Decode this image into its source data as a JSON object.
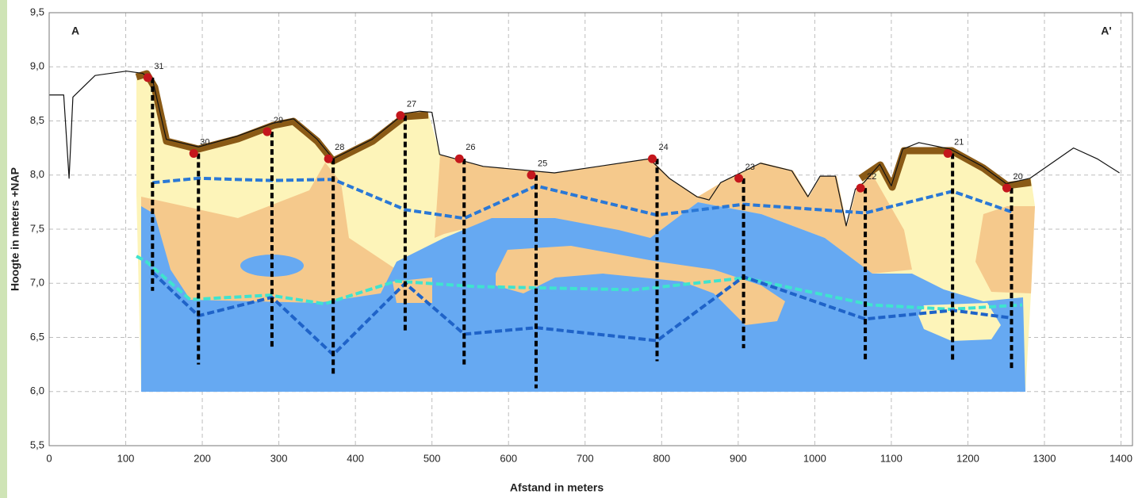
{
  "chart_data": {
    "type": "line",
    "xlabel": "Afstand in meters",
    "ylabel": "Hoogte in meters +NAP",
    "annotations": [
      "A",
      "A'"
    ],
    "xlim": [
      0,
      1415
    ],
    "ylim": [
      5.5,
      9.5
    ],
    "xticks": [
      0,
      100,
      200,
      300,
      400,
      500,
      600,
      700,
      800,
      900,
      1000,
      1100,
      1200,
      1300,
      1400
    ],
    "yticks": [
      {
        "value": 5.5,
        "label": "5,5"
      },
      {
        "value": 6.0,
        "label": "6,0"
      },
      {
        "value": 6.5,
        "label": "6,5"
      },
      {
        "value": 7.0,
        "label": "7,0"
      },
      {
        "value": 7.5,
        "label": "7,5"
      },
      {
        "value": 8.0,
        "label": "8,0"
      },
      {
        "value": 8.5,
        "label": "8,5"
      },
      {
        "value": 9.0,
        "label": "9,0"
      },
      {
        "value": 9.5,
        "label": "9,5"
      }
    ],
    "grid": true,
    "series": [
      {
        "color": "#111111",
        "dashed": false,
        "width": 1.2,
        "x": [
          0,
          19,
          26,
          31,
          60,
          101,
          122,
          135,
          153,
          195,
          246,
          293,
          319,
          350,
          371,
          422,
          464,
          484,
          500,
          510,
          567,
          660,
          784,
          810,
          846,
          862,
          877,
          929,
          970,
          991,
          1007,
          1027,
          1041,
          1053,
          1064,
          1085,
          1100,
          1115,
          1136,
          1177,
          1219,
          1250,
          1281,
          1338,
          1369,
          1398
        ],
        "values": [
          8.74,
          8.74,
          7.97,
          8.72,
          8.92,
          8.96,
          8.94,
          8.88,
          8.33,
          8.26,
          8.36,
          8.48,
          8.52,
          8.33,
          8.15,
          8.33,
          8.57,
          8.59,
          8.58,
          8.19,
          8.08,
          8.02,
          8.15,
          7.97,
          7.8,
          7.77,
          7.93,
          8.11,
          8.04,
          7.8,
          7.99,
          7.99,
          7.53,
          7.87,
          7.93,
          8.1,
          7.9,
          8.24,
          8.3,
          8.24,
          8.08,
          7.92,
          7.97,
          8.25,
          8.15,
          8.02
        ]
      },
      {
        "color": "#2a78d6",
        "dashed": true,
        "width": 4,
        "x": [
          135,
          195,
          291,
          371,
          465,
          542,
          636,
          794,
          907,
          1066,
          1180,
          1257
        ],
        "values": [
          7.93,
          7.97,
          7.95,
          7.96,
          7.68,
          7.6,
          7.9,
          7.63,
          7.73,
          7.65,
          7.85,
          7.66
        ]
      },
      {
        "color": "#3fe3cf",
        "dashed": true,
        "width": 4,
        "x": [
          114,
          127,
          184,
          288,
          360,
          453,
          557,
          764,
          908,
          1074,
          1177,
          1271
        ],
        "values": [
          7.25,
          7.2,
          6.85,
          6.89,
          6.81,
          7.02,
          6.97,
          6.94,
          7.05,
          6.8,
          6.76,
          6.8
        ]
      },
      {
        "color": "#1f63c8",
        "dashed": true,
        "width": 4,
        "x": [
          135,
          195,
          291,
          371,
          465,
          542,
          636,
          794,
          907,
          1066,
          1180,
          1257
        ],
        "values": [
          7.1,
          6.7,
          6.87,
          6.34,
          7.0,
          6.53,
          6.59,
          6.47,
          7.06,
          6.67,
          6.75,
          6.68
        ]
      }
    ],
    "boreholes": [
      {
        "label": "31",
        "x": 135,
        "top": 8.9,
        "bottom": 6.93
      },
      {
        "label": "30",
        "x": 195,
        "top": 8.2,
        "bottom": 6.25
      },
      {
        "label": "29",
        "x": 291,
        "top": 8.4,
        "bottom": 6.4
      },
      {
        "label": "28",
        "x": 371,
        "top": 8.15,
        "bottom": 6.16
      },
      {
        "label": "27",
        "x": 465,
        "top": 8.55,
        "bottom": 6.55
      },
      {
        "label": "26",
        "x": 542,
        "top": 8.15,
        "bottom": 6.25
      },
      {
        "label": "25",
        "x": 636,
        "top": 8.0,
        "bottom": 6.03
      },
      {
        "label": "24",
        "x": 794,
        "top": 8.15,
        "bottom": 6.28
      },
      {
        "label": "23",
        "x": 907,
        "top": 7.97,
        "bottom": 6.4
      },
      {
        "label": "22",
        "x": 1066,
        "top": 7.88,
        "bottom": 6.27
      },
      {
        "label": "21",
        "x": 1180,
        "top": 8.2,
        "bottom": 6.27
      },
      {
        "label": "20",
        "x": 1257,
        "top": 7.88,
        "bottom": 6.2
      }
    ],
    "borehole_color": "#c4161c"
  }
}
